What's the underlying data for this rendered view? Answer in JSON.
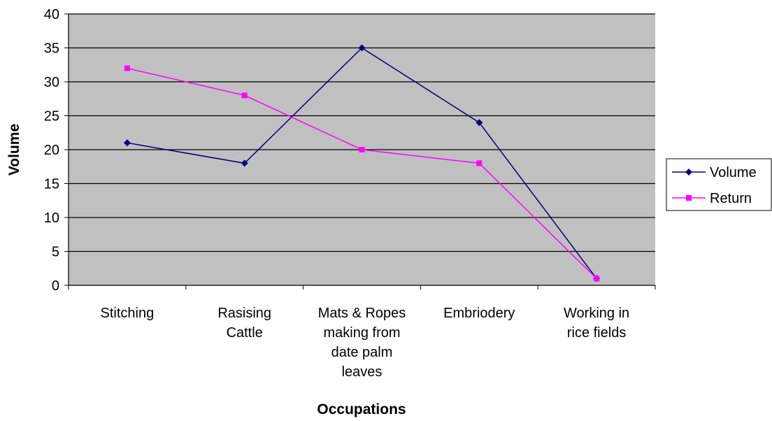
{
  "chart_data": {
    "type": "line",
    "title": "",
    "xlabel": "Occupations",
    "ylabel": "Volume",
    "categories": [
      [
        "Stitching"
      ],
      [
        "Rasising",
        "Cattle"
      ],
      [
        "Mats & Ropes",
        "making from",
        "date palm",
        "leaves"
      ],
      [
        "Embriodery"
      ],
      [
        "Working in",
        "rice fields"
      ]
    ],
    "ylim": [
      0,
      40
    ],
    "yticks": [
      "0",
      "5",
      "10",
      "15",
      "20",
      "25",
      "30",
      "35",
      "40"
    ],
    "grid": true,
    "legend_position": "right",
    "plot_background": "#c0c0c0",
    "series": [
      {
        "name": "Volume",
        "values": [
          21,
          18,
          35,
          24,
          1
        ],
        "color": "#000080",
        "marker": "diamond"
      },
      {
        "name": "Return",
        "values": [
          32,
          28,
          20,
          18,
          1
        ],
        "color": "#ff00ff",
        "marker": "square"
      }
    ]
  }
}
